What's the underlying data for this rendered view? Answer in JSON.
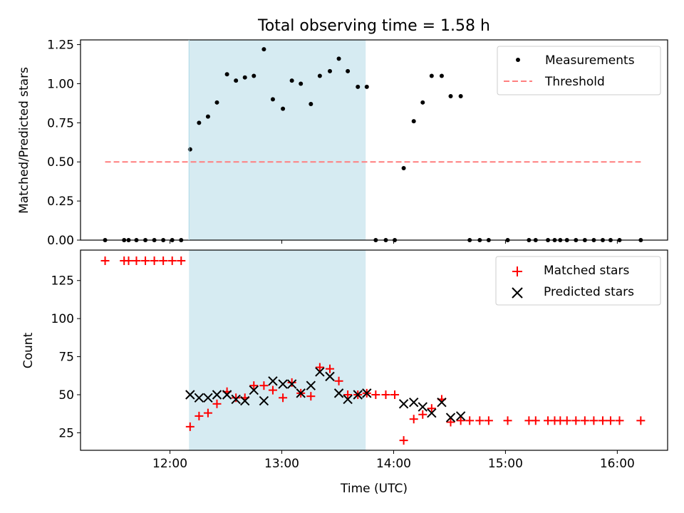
{
  "title": "Total observing time = 1.58 h",
  "colors": {
    "measurement": "#000000",
    "threshold": "#ff7f7f",
    "matched": "#ff0000",
    "predicted": "#000000",
    "span": "#add8e6"
  },
  "chart_data": [
    {
      "type": "scatter",
      "ylabel": "Matched/Predicted stars",
      "xlim": [
        11.2,
        16.45
      ],
      "ylim": [
        0,
        1.28
      ],
      "yticks": [
        0.0,
        0.25,
        0.5,
        0.75,
        1.0,
        1.25
      ],
      "ytick_labels": [
        "0.00",
        "0.25",
        "0.50",
        "0.75",
        "1.00",
        "1.25"
      ],
      "shaded_span": [
        12.17,
        13.75
      ],
      "legend": {
        "placement": "upper right",
        "entries": [
          "Measurements",
          "Threshold"
        ]
      },
      "series": [
        {
          "name": "Measurements",
          "marker": "dot",
          "points": [
            [
              11.42,
              0
            ],
            [
              11.59,
              0
            ],
            [
              11.63,
              0
            ],
            [
              11.7,
              0
            ],
            [
              11.78,
              0
            ],
            [
              11.86,
              0
            ],
            [
              11.94,
              0
            ],
            [
              12.02,
              0
            ],
            [
              12.1,
              0
            ],
            [
              12.18,
              0.58
            ],
            [
              12.26,
              0.75
            ],
            [
              12.34,
              0.79
            ],
            [
              12.42,
              0.88
            ],
            [
              12.51,
              1.06
            ],
            [
              12.59,
              1.02
            ],
            [
              12.67,
              1.04
            ],
            [
              12.75,
              1.05
            ],
            [
              12.84,
              1.22
            ],
            [
              12.92,
              0.9
            ],
            [
              13.01,
              0.84
            ],
            [
              13.09,
              1.02
            ],
            [
              13.17,
              1.0
            ],
            [
              13.26,
              0.87
            ],
            [
              13.34,
              1.05
            ],
            [
              13.43,
              1.08
            ],
            [
              13.51,
              1.16
            ],
            [
              13.59,
              1.08
            ],
            [
              13.68,
              0.98
            ],
            [
              13.76,
              0.98
            ],
            [
              13.84,
              0
            ],
            [
              13.93,
              0
            ],
            [
              14.01,
              0
            ],
            [
              14.09,
              0.46
            ],
            [
              14.18,
              0.76
            ],
            [
              14.26,
              0.88
            ],
            [
              14.34,
              1.05
            ],
            [
              14.43,
              1.05
            ],
            [
              14.51,
              0.92
            ],
            [
              14.6,
              0.92
            ],
            [
              14.68,
              0
            ],
            [
              14.77,
              0
            ],
            [
              14.85,
              0
            ],
            [
              15.02,
              0
            ],
            [
              15.21,
              0
            ],
            [
              15.27,
              0
            ],
            [
              15.38,
              0
            ],
            [
              15.44,
              0
            ],
            [
              15.49,
              0
            ],
            [
              15.55,
              0
            ],
            [
              15.63,
              0
            ],
            [
              15.71,
              0
            ],
            [
              15.79,
              0
            ],
            [
              15.87,
              0
            ],
            [
              15.94,
              0
            ],
            [
              16.02,
              0
            ],
            [
              16.21,
              0
            ]
          ]
        },
        {
          "name": "Threshold",
          "style": "dashed",
          "x": [
            11.42,
            16.21
          ],
          "y": [
            0.5,
            0.5
          ]
        }
      ]
    },
    {
      "type": "scatter",
      "xlabel": "Time (UTC)",
      "ylabel": "Count",
      "xlim": [
        11.2,
        16.45
      ],
      "ylim": [
        13.5,
        145
      ],
      "yticks": [
        25,
        50,
        75,
        100,
        125
      ],
      "ytick_labels": [
        "25",
        "50",
        "75",
        "100",
        "125"
      ],
      "xticks": [
        12,
        13,
        14,
        15,
        16
      ],
      "xtick_labels": [
        "12:00",
        "13:00",
        "14:00",
        "15:00",
        "16:00"
      ],
      "shaded_span": [
        12.17,
        13.75
      ],
      "legend": {
        "placement": "upper right",
        "entries": [
          "Matched stars",
          "Predicted stars"
        ]
      },
      "series": [
        {
          "name": "Matched stars",
          "marker": "plus",
          "points": [
            [
              11.42,
              138
            ],
            [
              11.59,
              138
            ],
            [
              11.63,
              138
            ],
            [
              11.7,
              138
            ],
            [
              11.78,
              138
            ],
            [
              11.86,
              138
            ],
            [
              11.94,
              138
            ],
            [
              12.02,
              138
            ],
            [
              12.1,
              138
            ],
            [
              12.18,
              29
            ],
            [
              12.26,
              36
            ],
            [
              12.34,
              38
            ],
            [
              12.42,
              44
            ],
            [
              12.51,
              52
            ],
            [
              12.59,
              48
            ],
            [
              12.67,
              48
            ],
            [
              12.75,
              56
            ],
            [
              12.84,
              56
            ],
            [
              12.92,
              53
            ],
            [
              13.01,
              48
            ],
            [
              13.09,
              58
            ],
            [
              13.17,
              51
            ],
            [
              13.26,
              49
            ],
            [
              13.34,
              68
            ],
            [
              13.43,
              67
            ],
            [
              13.51,
              59
            ],
            [
              13.59,
              50
            ],
            [
              13.68,
              50
            ],
            [
              13.76,
              51
            ],
            [
              13.84,
              50
            ],
            [
              13.93,
              50
            ],
            [
              14.01,
              50
            ],
            [
              14.09,
              20
            ],
            [
              14.18,
              34
            ],
            [
              14.26,
              37
            ],
            [
              14.34,
              41
            ],
            [
              14.43,
              47
            ],
            [
              14.51,
              32
            ],
            [
              14.6,
              33
            ],
            [
              14.68,
              33
            ],
            [
              14.77,
              33
            ],
            [
              14.85,
              33
            ],
            [
              15.02,
              33
            ],
            [
              15.21,
              33
            ],
            [
              15.27,
              33
            ],
            [
              15.38,
              33
            ],
            [
              15.44,
              33
            ],
            [
              15.49,
              33
            ],
            [
              15.55,
              33
            ],
            [
              15.63,
              33
            ],
            [
              15.71,
              33
            ],
            [
              15.79,
              33
            ],
            [
              15.87,
              33
            ],
            [
              15.94,
              33
            ],
            [
              16.02,
              33
            ],
            [
              16.21,
              33
            ]
          ]
        },
        {
          "name": "Predicted stars",
          "marker": "x",
          "points": [
            [
              12.18,
              50
            ],
            [
              12.26,
              48
            ],
            [
              12.34,
              48
            ],
            [
              12.42,
              50
            ],
            [
              12.51,
              50
            ],
            [
              12.59,
              47
            ],
            [
              12.67,
              46
            ],
            [
              12.75,
              53
            ],
            [
              12.84,
              46
            ],
            [
              12.92,
              59
            ],
            [
              13.01,
              57
            ],
            [
              13.09,
              57
            ],
            [
              13.17,
              51
            ],
            [
              13.26,
              56
            ],
            [
              13.34,
              65
            ],
            [
              13.43,
              62
            ],
            [
              13.51,
              51
            ],
            [
              13.59,
              47
            ],
            [
              13.68,
              50
            ],
            [
              13.76,
              51
            ],
            [
              14.09,
              44
            ],
            [
              14.18,
              45
            ],
            [
              14.26,
              42
            ],
            [
              14.34,
              38
            ],
            [
              14.43,
              45
            ],
            [
              14.51,
              35
            ],
            [
              14.6,
              36
            ]
          ]
        }
      ]
    }
  ]
}
